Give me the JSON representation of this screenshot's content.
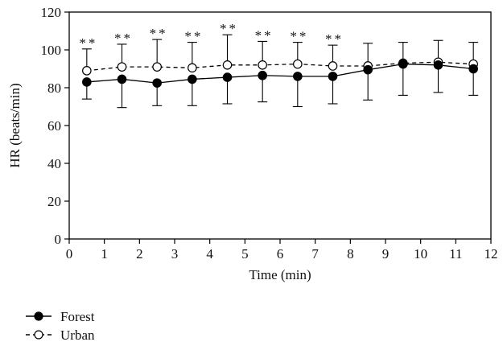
{
  "chart_data": {
    "type": "line",
    "xlabel": "Time (min)",
    "ylabel": "HR (beats/min)",
    "xlim": [
      0,
      12
    ],
    "ylim": [
      0,
      120
    ],
    "xticks": [
      "0",
      "1",
      "2",
      "3",
      "4",
      "5",
      "6",
      "7",
      "8",
      "9",
      "10",
      "11",
      "12"
    ],
    "yticks": [
      "0",
      "20",
      "40",
      "60",
      "80",
      "100",
      "120"
    ],
    "x": [
      0.5,
      1.5,
      2.5,
      3.5,
      4.5,
      5.5,
      6.5,
      7.5,
      8.5,
      9.5,
      10.5,
      11.5
    ],
    "series": [
      {
        "name": "Forest",
        "color": "#000000",
        "marker": "filled-circle",
        "line": "solid",
        "values": [
          83,
          84.5,
          82.5,
          84.5,
          85.5,
          86.5,
          86,
          86,
          89.5,
          92.5,
          92,
          90
        ],
        "sd": [
          9,
          15,
          12,
          14,
          14,
          14,
          16,
          14.5,
          16,
          16.5,
          14.5,
          14
        ]
      },
      {
        "name": "Urban",
        "color": "#000000",
        "marker": "open-circle",
        "line": "dashed",
        "values": [
          89,
          91,
          91,
          90.5,
          92,
          92,
          92.5,
          91.5,
          91.5,
          93,
          93.5,
          92.5
        ],
        "sd": [
          11.5,
          12,
          14.5,
          13.5,
          16,
          12.5,
          11.5,
          11,
          12,
          11,
          11.5,
          11.5
        ]
      }
    ],
    "annotations": [
      "**",
      "**",
      "**",
      "**",
      "**",
      "**",
      "**",
      "**"
    ],
    "grid": false,
    "legend_position": "bottom-left"
  }
}
